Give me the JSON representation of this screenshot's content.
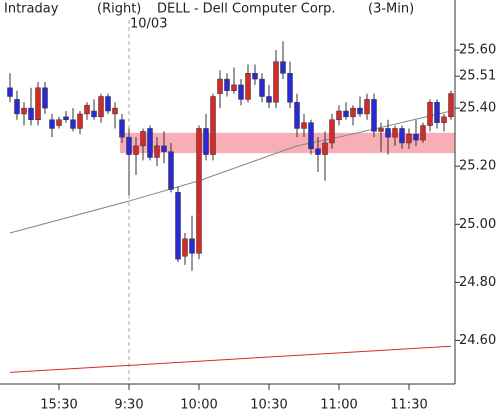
{
  "chart_data": {
    "type": "candlestick",
    "title": "DELL - Dell Computer Corp.",
    "left_label": "Intraday",
    "axis_side": "(Right)",
    "interval": "(3-Min)",
    "date_label": "10/03",
    "session_start_index": 17,
    "categories": [
      null,
      null,
      null,
      null,
      null,
      null,
      null,
      "15:30",
      null,
      null,
      null,
      null,
      null,
      null,
      null,
      null,
      null,
      "9:30",
      null,
      null,
      null,
      null,
      null,
      null,
      null,
      null,
      null,
      "10:00",
      null,
      null,
      null,
      null,
      null,
      null,
      null,
      null,
      null,
      "10:30",
      null,
      null,
      null,
      null,
      null,
      null,
      null,
      null,
      null,
      "11:00",
      null,
      null,
      null,
      null,
      null,
      null,
      null,
      null,
      null,
      "11:30",
      null,
      null,
      null,
      null,
      null,
      null
    ],
    "open": [
      25.47,
      25.43,
      25.38,
      25.4,
      25.36,
      25.47,
      25.36,
      25.34,
      25.37,
      25.36,
      25.33,
      25.38,
      25.39,
      25.37,
      25.44,
      25.38,
      25.36,
      25.3,
      25.24,
      25.27,
      25.33,
      25.23,
      25.27,
      25.25,
      25.11,
      24.89,
      24.95,
      24.9,
      25.33,
      25.24,
      25.45,
      25.5,
      25.46,
      25.48,
      25.43,
      25.52,
      25.5,
      25.44,
      25.42,
      25.56,
      25.52,
      25.42,
      25.33,
      25.35,
      25.26,
      25.24,
      25.28,
      25.36,
      25.39,
      25.37,
      25.4,
      25.38,
      25.43,
      25.32,
      25.33,
      25.3,
      25.33,
      25.28,
      25.31,
      25.29,
      25.34,
      25.42,
      25.35,
      25.37
    ],
    "high": [
      25.52,
      25.46,
      25.42,
      25.47,
      25.49,
      25.49,
      25.38,
      25.37,
      25.39,
      25.4,
      25.39,
      25.42,
      25.43,
      25.45,
      25.45,
      25.42,
      25.38,
      25.33,
      25.3,
      25.33,
      25.34,
      25.3,
      25.32,
      25.28,
      25.13,
      24.97,
      25.03,
      25.34,
      25.38,
      25.45,
      25.53,
      25.52,
      25.54,
      25.5,
      25.55,
      25.55,
      25.52,
      25.48,
      25.6,
      25.63,
      25.56,
      25.45,
      25.38,
      25.36,
      25.3,
      25.32,
      25.38,
      25.41,
      25.42,
      25.41,
      25.44,
      25.45,
      25.45,
      25.35,
      25.36,
      25.34,
      25.34,
      25.33,
      25.36,
      25.35,
      25.43,
      25.43,
      25.38,
      25.46
    ],
    "low": [
      25.42,
      25.36,
      25.34,
      25.34,
      25.34,
      25.38,
      25.3,
      25.33,
      25.35,
      25.32,
      25.31,
      25.36,
      25.36,
      25.35,
      25.38,
      25.33,
      25.28,
      25.1,
      25.17,
      25.22,
      25.22,
      25.2,
      25.21,
      25.11,
      24.87,
      24.86,
      24.84,
      24.88,
      25.22,
      25.22,
      25.4,
      25.44,
      25.45,
      25.41,
      25.42,
      25.48,
      25.42,
      25.4,
      25.4,
      25.5,
      25.4,
      25.3,
      25.3,
      25.24,
      25.18,
      25.15,
      25.26,
      25.34,
      25.36,
      25.34,
      25.37,
      25.36,
      25.3,
      25.25,
      25.24,
      25.27,
      25.26,
      25.26,
      25.27,
      25.28,
      25.32,
      25.33,
      25.32,
      25.36
    ],
    "close": [
      25.44,
      25.38,
      25.4,
      25.36,
      25.47,
      25.4,
      25.33,
      25.36,
      25.36,
      25.33,
      25.38,
      25.41,
      25.37,
      25.44,
      25.39,
      25.4,
      25.3,
      25.24,
      25.27,
      25.32,
      25.23,
      25.27,
      25.25,
      25.12,
      24.88,
      24.95,
      24.9,
      25.33,
      25.24,
      25.44,
      25.5,
      25.46,
      25.48,
      25.43,
      25.52,
      25.5,
      25.44,
      25.42,
      25.56,
      25.52,
      25.42,
      25.33,
      25.35,
      25.26,
      25.24,
      25.28,
      25.36,
      25.39,
      25.37,
      25.4,
      25.38,
      25.43,
      25.32,
      25.33,
      25.3,
      25.33,
      25.28,
      25.31,
      25.29,
      25.34,
      25.42,
      25.35,
      25.37,
      25.45
    ],
    "up_color": "#d42a2a",
    "down_color": "#2a2ad4",
    "moving_averages": [
      {
        "color": "#888888",
        "x": [
          0,
          17,
          27,
          41,
          47,
          63
        ],
        "values": [
          24.97,
          25.08,
          25.15,
          25.27,
          25.3,
          25.39
        ]
      },
      {
        "color": "#d42a2a",
        "x": [
          0,
          63
        ],
        "values": [
          24.49,
          24.58
        ]
      }
    ],
    "highlight_band": [
      25.245,
      25.315
    ],
    "highlight_start_index": 16,
    "highlight_color": "#f7a0a8",
    "ylim": [
      24.45,
      25.7
    ],
    "yticks": [
      {
        "value": 25.6,
        "label": "25.60"
      },
      {
        "value": 25.51,
        "label": "25.51"
      },
      {
        "value": 25.4,
        "label": "25.40"
      },
      {
        "value": 25.2,
        "label": "25.20"
      },
      {
        "value": 25,
        "label": "25.00"
      },
      {
        "value": 24.8,
        "label": "24.80"
      },
      {
        "value": 24.6,
        "label": "24.60"
      }
    ]
  }
}
